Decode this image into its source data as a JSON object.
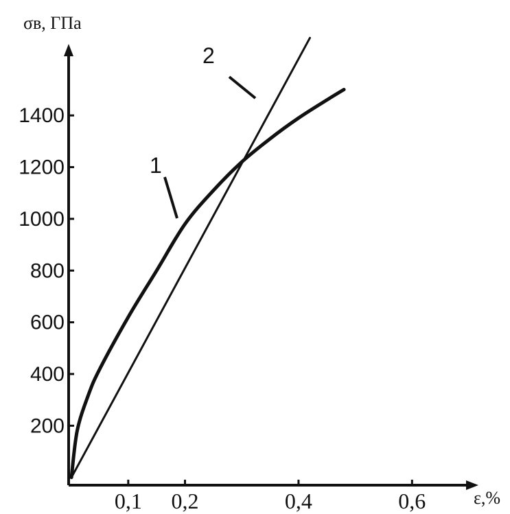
{
  "chart_data": {
    "type": "line",
    "ylabel": "σв, ГПа",
    "xlabel": "ε,%",
    "xlim": [
      -0.005,
      0.7
    ],
    "ylim": [
      -30,
      1650
    ],
    "x_ticks": [
      {
        "value": 0.1,
        "label": "0,1"
      },
      {
        "value": 0.2,
        "label": "0,2"
      },
      {
        "value": 0.4,
        "label": "0,4"
      },
      {
        "value": 0.6,
        "label": "0,6"
      }
    ],
    "y_ticks": [
      {
        "value": 200,
        "label": "200"
      },
      {
        "value": 400,
        "label": "400"
      },
      {
        "value": 600,
        "label": "600"
      },
      {
        "value": 800,
        "label": "800"
      },
      {
        "value": 1000,
        "label": "1000"
      },
      {
        "value": 1200,
        "label": "1200"
      },
      {
        "value": 1400,
        "label": "1400"
      }
    ],
    "series": [
      {
        "name": "1",
        "x": [
          0.0,
          0.01,
          0.03,
          0.05,
          0.1,
          0.15,
          0.2,
          0.25,
          0.3,
          0.35,
          0.4,
          0.45,
          0.48
        ],
        "y": [
          0,
          180,
          320,
          420,
          620,
          800,
          980,
          1110,
          1220,
          1310,
          1390,
          1460,
          1500
        ],
        "width": 5
      },
      {
        "name": "2",
        "x": [
          0.0,
          0.42
        ],
        "y": [
          0,
          1700
        ],
        "width": 3
      }
    ],
    "grid": false,
    "legend": "none"
  }
}
